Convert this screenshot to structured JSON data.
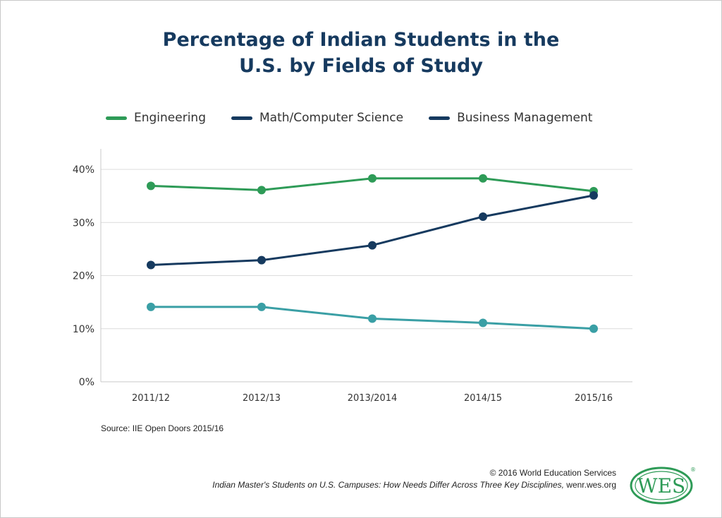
{
  "chart_data": {
    "type": "line",
    "title_lines": [
      "Percentage of Indian Students in the",
      "U.S. by Fields of Study"
    ],
    "categories": [
      "2011/12",
      "2012/13",
      "2013/2014",
      "2014/15",
      "2015/16"
    ],
    "ylim": [
      0,
      40
    ],
    "yticks": [
      0,
      10,
      20,
      30,
      40
    ],
    "ytick_labels": [
      "0%",
      "10%",
      "20%",
      "30%",
      "40%"
    ],
    "grid": true,
    "legend_position": "top",
    "series": [
      {
        "name": "Engineering",
        "values": [
          36.9,
          36.1,
          38.3,
          38.3,
          35.9
        ],
        "color": "#2e9b57"
      },
      {
        "name": "Math/Computer Science",
        "values": [
          22.0,
          22.9,
          25.7,
          31.1,
          35.1
        ],
        "color": "#163a5f"
      },
      {
        "name": "Business Management",
        "values": [
          14.1,
          14.1,
          11.9,
          11.1,
          10.0
        ],
        "color": "#3a9fa5"
      }
    ],
    "legend_swatch_colors": [
      "#2e9b57",
      "#163a5f",
      "#163a5f"
    ]
  },
  "source": "Source: IIE Open Doors 2015/16",
  "footer": {
    "copyright": "© 2016 World Education Services",
    "article_italic": "Indian Master's Students on U.S. Campuses:  How Needs Differ Across Three Key Disciplines,",
    "site": " wenr.wes.org"
  },
  "logo": {
    "text": "WES",
    "registered": "®",
    "color": "#2e9b57"
  }
}
